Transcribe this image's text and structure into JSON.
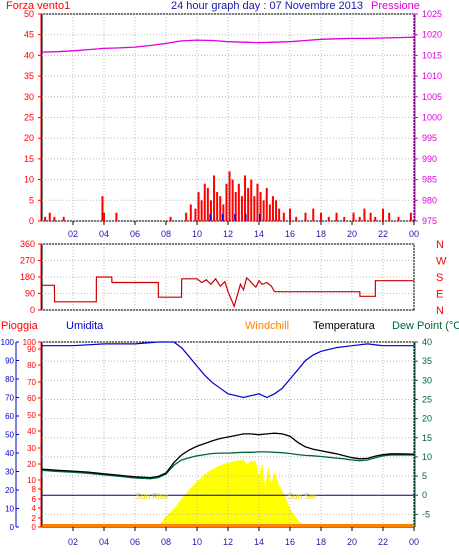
{
  "header": {
    "left_label": "Forza vento1",
    "title": "24 hour graph day : 07 Novembre 2013",
    "right_label": "Pressione"
  },
  "colors": {
    "wind": "#ff0000",
    "pressure": "#e000e0",
    "title": "#1a1aa8",
    "humidity": "#0000cc",
    "windchill": "#ff8000",
    "temperature": "#000000",
    "dewpoint": "#006633",
    "solar": "#ffff00",
    "sun_label": "#e6d200",
    "rain": "#ff0000"
  },
  "time_axis": {
    "ticks": [
      "02",
      "04",
      "06",
      "08",
      "10",
      "12",
      "14",
      "16",
      "18",
      "20",
      "22",
      "00"
    ]
  },
  "chart_data": [
    {
      "id": "wind_pressure",
      "type": "bar",
      "title": "24 hour graph day : 07 Novembre 2013",
      "xlabel": "",
      "x_unit": "hour",
      "xlim": [
        0,
        24
      ],
      "y_left": {
        "label": "Forza vento1",
        "ticks": [
          0,
          5,
          10,
          15,
          20,
          25,
          30,
          35,
          40,
          45,
          50
        ],
        "ylim": [
          0,
          50
        ]
      },
      "y_right": {
        "label": "Pressione",
        "ticks": [
          975,
          980,
          985,
          990,
          995,
          1000,
          1005,
          1010,
          1015,
          1020,
          1025
        ],
        "ylim": [
          975,
          1025
        ]
      },
      "series": [
        {
          "name": "Pressione",
          "type": "line",
          "axis": "right",
          "x": [
            0,
            1,
            2,
            3,
            4,
            5,
            6,
            7,
            8,
            9,
            10,
            11,
            12,
            13,
            14,
            15,
            16,
            17,
            18,
            19,
            20,
            21,
            22,
            23,
            24
          ],
          "values": [
            1015.8,
            1015.9,
            1016.1,
            1016.4,
            1016.7,
            1016.8,
            1017.0,
            1017.4,
            1017.9,
            1018.5,
            1018.7,
            1018.6,
            1018.3,
            1018.2,
            1018.1,
            1018.2,
            1018.3,
            1018.6,
            1018.9,
            1019.0,
            1019.1,
            1019.1,
            1019.2,
            1019.3,
            1019.4
          ]
        },
        {
          "name": "Forza vento1",
          "type": "bar",
          "axis": "left",
          "x": [
            0.2,
            0.5,
            0.8,
            1.4,
            3.9,
            4.0,
            4.8,
            8.3,
            9.3,
            9.6,
            9.9,
            10.1,
            10.3,
            10.5,
            10.7,
            10.9,
            11.1,
            11.3,
            11.5,
            11.7,
            11.9,
            12.1,
            12.3,
            12.5,
            12.7,
            12.9,
            13.1,
            13.3,
            13.5,
            13.7,
            13.9,
            14.1,
            14.3,
            14.5,
            14.7,
            14.9,
            15.1,
            15.3,
            15.6,
            16.0,
            16.4,
            17.0,
            17.5,
            18.0,
            18.5,
            19.0,
            19.5,
            20.1,
            20.5,
            20.8,
            21.2,
            21.5,
            22.0,
            22.4,
            23.0,
            23.8
          ],
          "values": [
            1,
            2,
            1,
            1,
            6,
            2,
            2,
            1,
            2,
            4,
            3,
            7,
            5,
            9,
            8,
            5,
            11,
            7,
            6,
            4,
            9,
            12,
            10,
            7,
            9,
            6,
            11,
            8,
            10,
            6,
            9,
            7,
            5,
            8,
            4,
            6,
            5,
            3,
            2,
            3,
            1,
            2,
            3,
            2,
            1,
            2,
            1,
            2,
            1,
            3,
            2,
            1,
            3,
            2,
            1,
            2
          ]
        }
      ]
    },
    {
      "id": "wind_direction",
      "type": "line",
      "title": "",
      "x_unit": "hour",
      "xlim": [
        0,
        24
      ],
      "y_left": {
        "ticks": [
          0,
          90,
          180,
          270,
          360
        ],
        "ylim": [
          0,
          360
        ]
      },
      "y_right": {
        "ticks": [
          "N",
          "W",
          "S",
          "E",
          "N"
        ],
        "ylim": [
          0,
          360
        ]
      },
      "series": [
        {
          "name": "",
          "type": "step",
          "x": [
            0,
            0.8,
            0.81,
            3.5,
            3.51,
            4.5,
            4.51,
            7.5,
            7.51,
            9.0,
            9.01,
            10.0,
            10.3,
            10.6,
            10.9,
            11.2,
            11.5,
            11.8,
            12.0,
            12.2,
            12.4,
            12.6,
            12.8,
            13.0,
            13.2,
            13.4,
            13.6,
            13.8,
            14.0,
            14.2,
            14.5,
            14.8,
            15.0,
            15.01,
            20.5,
            20.51,
            21.5,
            21.51,
            24
          ],
          "values": [
            135,
            135,
            45,
            45,
            180,
            180,
            150,
            150,
            70,
            70,
            170,
            170,
            150,
            165,
            140,
            170,
            130,
            155,
            100,
            60,
            20,
            80,
            140,
            110,
            175,
            160,
            140,
            125,
            160,
            140,
            150,
            130,
            100,
            100,
            100,
            75,
            75,
            160,
            160
          ]
        }
      ]
    },
    {
      "id": "temp_humidity",
      "type": "line",
      "title": "",
      "x_unit": "hour",
      "xlim": [
        0,
        24
      ],
      "y_left_rain": {
        "label": "Pioggia",
        "ticks": [
          0,
          2,
          4,
          6,
          8,
          10,
          20,
          30,
          40,
          50,
          60,
          70,
          80,
          90,
          100
        ]
      },
      "y_left_humidity": {
        "label": "Umidita",
        "ticks": [
          0,
          10,
          20,
          30,
          40,
          50,
          60,
          70,
          80,
          90,
          100
        ],
        "ylim": [
          0,
          100
        ]
      },
      "y_right": {
        "label": "Dew Point (°C",
        "ticks": [
          -5,
          0,
          5,
          10,
          15,
          20,
          25,
          30,
          35,
          40
        ],
        "ylim": [
          -8.3,
          40
        ]
      },
      "legend": [
        "Windchill",
        "Temperatura",
        "Dew Point (°C"
      ],
      "annotations": [
        "Sun Rise",
        "Sun Set"
      ],
      "series": [
        {
          "name": "Umidita",
          "axis": "humidity",
          "x": [
            0,
            2,
            4,
            6,
            7.5,
            8,
            8.5,
            9,
            9.5,
            10,
            10.5,
            11,
            11.5,
            12,
            12.5,
            13,
            13.5,
            14,
            14.5,
            15,
            15.5,
            16,
            16.5,
            17,
            17.5,
            18,
            19,
            20,
            21,
            22,
            23,
            24
          ],
          "values": [
            98,
            98,
            99,
            99,
            100,
            100,
            100,
            97,
            92,
            87,
            82,
            78,
            75,
            72,
            71,
            70,
            71,
            72,
            70,
            72,
            75,
            80,
            85,
            90,
            93,
            95,
            97,
            98,
            99,
            98,
            98,
            98
          ]
        },
        {
          "name": "Temperatura",
          "axis": "temp",
          "x": [
            0,
            1,
            2,
            3,
            4,
            5,
            6,
            7,
            7.5,
            8,
            8.5,
            9,
            9.5,
            10,
            10.5,
            11,
            11.5,
            12,
            12.5,
            13,
            13.5,
            14,
            14.5,
            15,
            15.5,
            16,
            16.5,
            17,
            17.5,
            18,
            18.5,
            19,
            19.5,
            20,
            20.5,
            21,
            21.5,
            22,
            22.5,
            23,
            24
          ],
          "values": [
            6.8,
            6.5,
            6.3,
            6.0,
            5.6,
            5.2,
            4.8,
            4.6,
            4.9,
            5.8,
            8.5,
            10.5,
            11.8,
            12.8,
            13.5,
            14.2,
            14.8,
            15.2,
            15.6,
            16.0,
            16.0,
            15.8,
            16.0,
            16.2,
            16.0,
            15.4,
            13.8,
            12.6,
            12.0,
            11.6,
            11.2,
            10.8,
            10.3,
            9.8,
            9.5,
            9.6,
            10.2,
            10.6,
            10.8,
            10.8,
            10.7
          ]
        },
        {
          "name": "Dew Point (°C",
          "axis": "temp",
          "x": [
            0,
            1,
            2,
            3,
            4,
            5,
            6,
            7,
            7.5,
            8,
            8.5,
            9,
            9.5,
            10,
            10.5,
            11,
            11.5,
            12,
            12.5,
            13,
            13.5,
            14,
            14.5,
            15,
            15.5,
            16,
            16.5,
            17,
            17.5,
            18,
            18.5,
            19,
            19.5,
            20,
            20.5,
            21,
            21.5,
            22,
            22.5,
            23,
            24
          ],
          "values": [
            6.5,
            6.2,
            6.0,
            5.7,
            5.3,
            4.9,
            4.5,
            4.3,
            4.6,
            5.5,
            7.8,
            9.2,
            9.8,
            10.3,
            10.6,
            10.9,
            11.0,
            11.0,
            11.1,
            11.2,
            11.2,
            11.3,
            11.3,
            11.2,
            11.1,
            10.9,
            10.6,
            10.4,
            10.3,
            10.1,
            9.9,
            9.7,
            9.5,
            9.2,
            9.0,
            9.2,
            9.8,
            10.3,
            10.5,
            10.5,
            10.5
          ]
        },
        {
          "name": "",
          "type": "area",
          "note_label": "solar",
          "axis": "temp",
          "x": [
            7.2,
            7.6,
            8.0,
            8.5,
            9.0,
            9.5,
            10.0,
            10.5,
            11.0,
            11.5,
            12.0,
            12.5,
            13.0,
            13.2,
            13.5,
            13.8,
            14.0,
            14.2,
            14.4,
            14.6,
            14.8,
            15.0,
            15.3,
            15.6,
            16.0,
            16.5,
            17.0
          ],
          "values": [
            -8.3,
            -7.5,
            -5.5,
            -3.5,
            -1.0,
            1.5,
            3.5,
            5.5,
            6.8,
            7.8,
            8.5,
            9.0,
            9.2,
            8.0,
            9.0,
            8.8,
            5.0,
            8.5,
            2.0,
            7.5,
            3.0,
            6.0,
            2.5,
            0.5,
            -3.5,
            -6.5,
            -8.3
          ]
        }
      ]
    }
  ],
  "panel3_labels": {
    "rain": "Pioggia",
    "humidity": "Umidita",
    "windchill": "Windchill",
    "temperature": "Temperatura",
    "dewpoint": "Dew Point (°C",
    "sunrise": "Sun Rise",
    "sunset": "Sun Set"
  }
}
